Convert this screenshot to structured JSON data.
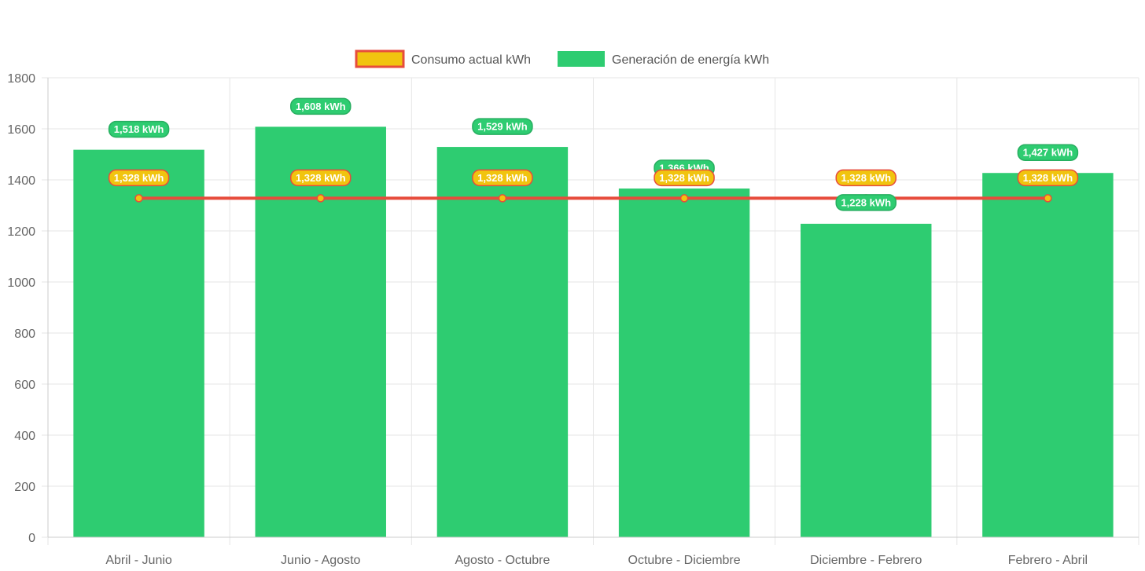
{
  "colors": {
    "generation": "#2ecc71",
    "generation_border": "#27ae60",
    "consumption_line": "#e74c3c",
    "consumption_fill": "#f1c40f",
    "grid": "#e6e6e6",
    "axis_text": "#666666"
  },
  "legend": {
    "consumption": "Consumo actual kWh",
    "generation": "Generación de energía kWh"
  },
  "chart_data": {
    "type": "bar",
    "categories": [
      "Abril - Junio",
      "Junio - Agosto",
      "Agosto - Octubre",
      "Octubre - Diciembre",
      "Diciembre - Febrero",
      "Febrero - Abril"
    ],
    "ylim": [
      0,
      1800
    ],
    "yticks": [
      0,
      200,
      400,
      600,
      800,
      1000,
      1200,
      1400,
      1600,
      1800
    ],
    "grid": true,
    "legend_position": "top",
    "series": [
      {
        "name": "Consumo actual kWh",
        "type": "line",
        "values": [
          1328,
          1328,
          1328,
          1328,
          1328,
          1328
        ],
        "labels": [
          "1,328 kWh",
          "1,328 kWh",
          "1,328 kWh",
          "1,328 kWh",
          "1,328 kWh",
          "1,328 kWh"
        ]
      },
      {
        "name": "Generación de energía kWh",
        "type": "bar",
        "values": [
          1518,
          1608,
          1529,
          1366,
          1228,
          1427
        ],
        "labels": [
          "1,518 kWh",
          "1,608 kWh",
          "1,529 kWh",
          "1,366 kWh",
          "1,228 kWh",
          "1,427 kWh"
        ]
      }
    ]
  }
}
